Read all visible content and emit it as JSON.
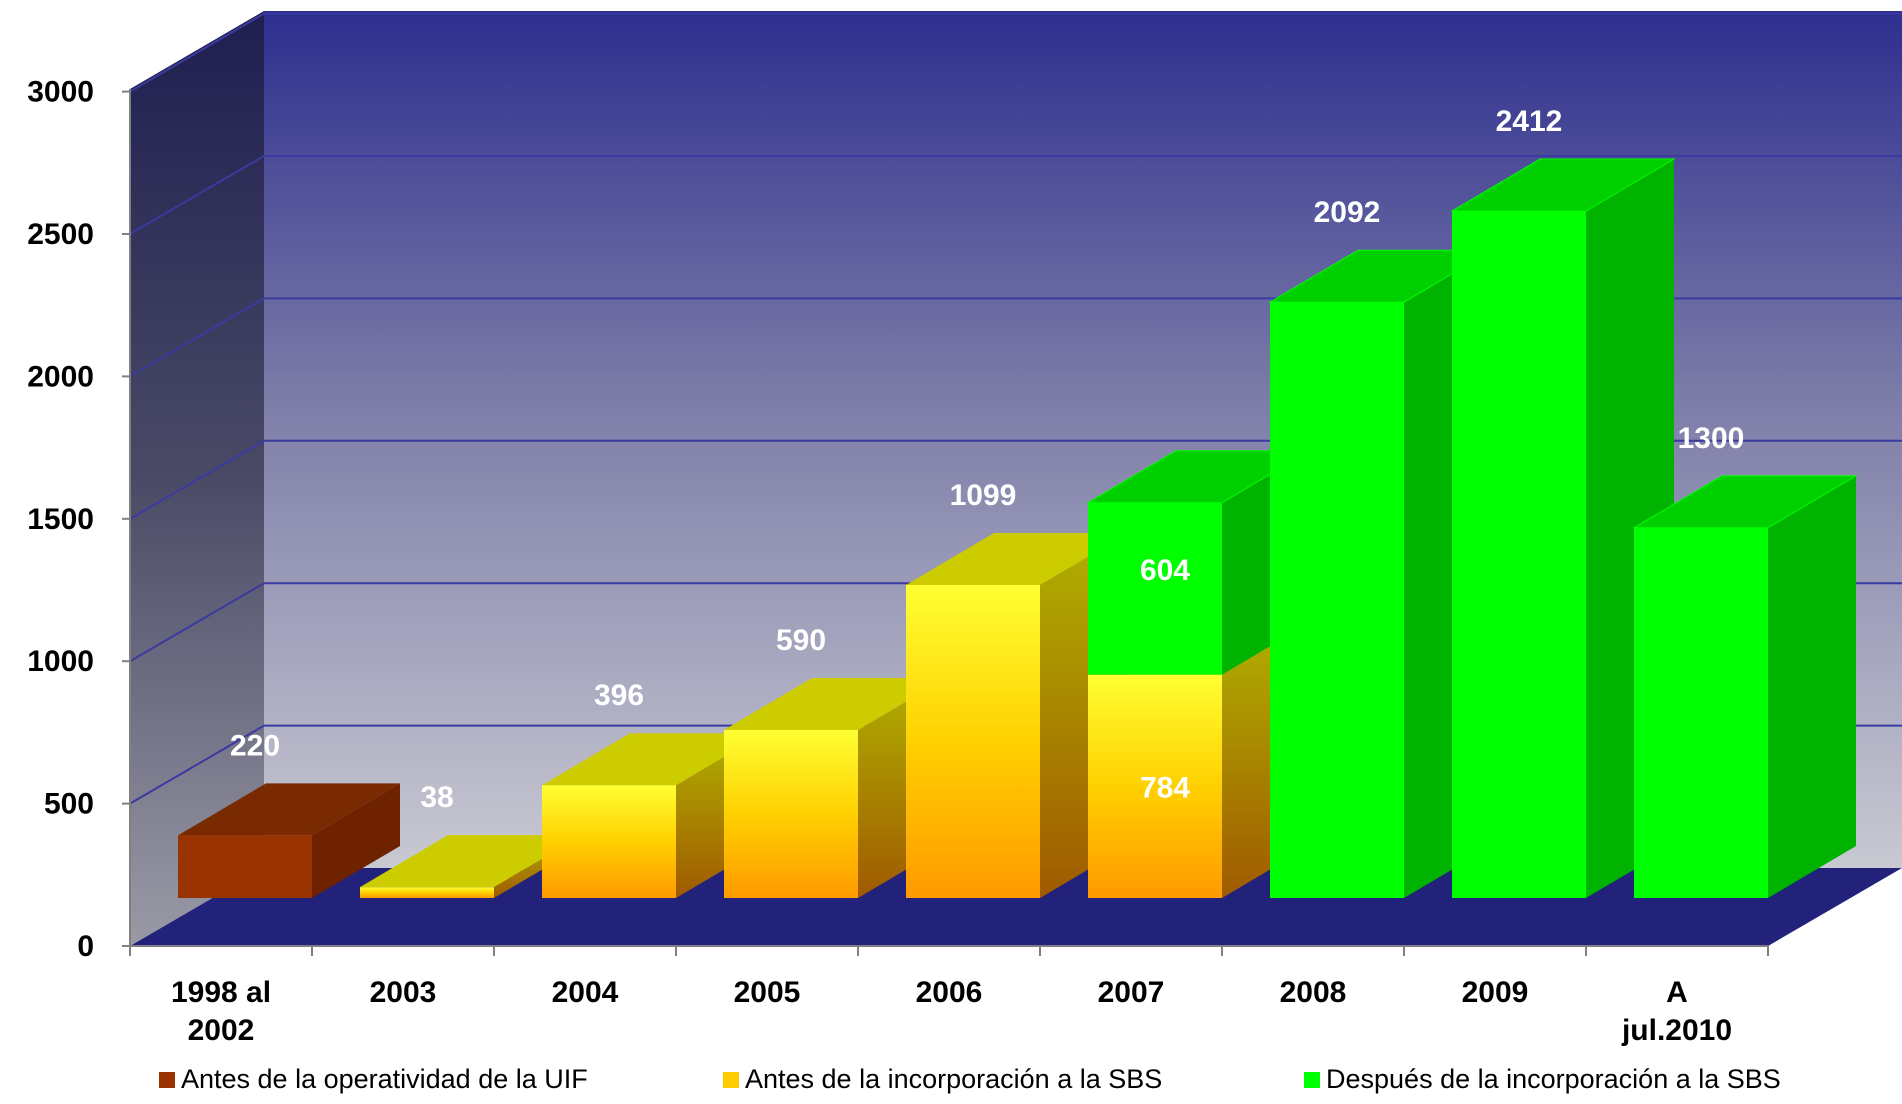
{
  "chart_data": {
    "type": "bar",
    "stacked": true,
    "three_d": true,
    "categories": [
      [
        "1998 al",
        "2002"
      ],
      [
        "2003"
      ],
      [
        "2004"
      ],
      [
        "2005"
      ],
      [
        "2006"
      ],
      [
        "2007"
      ],
      [
        "2008"
      ],
      [
        "2009"
      ],
      [
        "A",
        "jul.2010"
      ]
    ],
    "series": [
      {
        "name": "Antes de la operatividad de la UIF",
        "color": "#993300",
        "values": [
          220,
          0,
          0,
          0,
          0,
          0,
          0,
          0,
          0
        ]
      },
      {
        "name": "Antes de la incorporación a la SBS",
        "color": "#ffcc00",
        "values": [
          0,
          38,
          396,
          590,
          1099,
          784,
          0,
          0,
          0
        ]
      },
      {
        "name": "Después de la incorporación a la SBS",
        "color": "#00ff00",
        "values": [
          0,
          0,
          0,
          0,
          0,
          604,
          2092,
          2412,
          1300
        ]
      }
    ],
    "data_labels": [
      {
        "category": 0,
        "text": "220"
      },
      {
        "category": 1,
        "text": "38"
      },
      {
        "category": 2,
        "text": "396"
      },
      {
        "category": 3,
        "text": "590"
      },
      {
        "category": 4,
        "text": "1099"
      },
      {
        "category": 5,
        "text": "604"
      },
      {
        "category": 5,
        "text": "784"
      },
      {
        "category": 6,
        "text": "2092"
      },
      {
        "category": 7,
        "text": "2412"
      },
      {
        "category": 8,
        "text": "1300"
      }
    ],
    "yticks": [
      "0",
      "500",
      "1000",
      "1500",
      "2000",
      "2500",
      "3000"
    ],
    "ylim": [
      0,
      3000
    ],
    "grid": true,
    "legend_position": "bottom",
    "title": "",
    "xlabel": "",
    "ylabel": ""
  }
}
